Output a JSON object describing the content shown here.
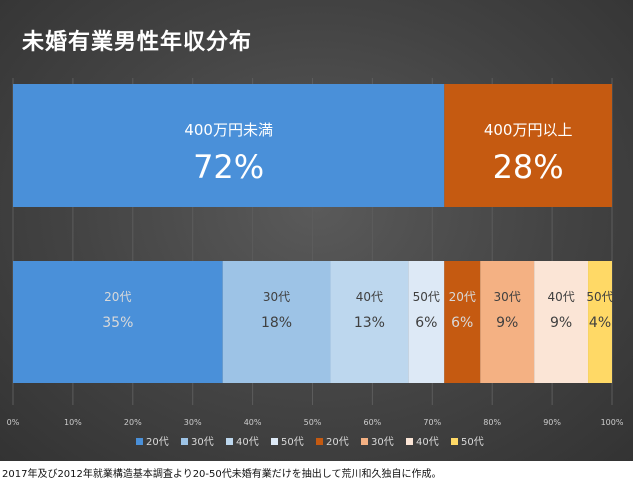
{
  "title": "未婚有業男性年収分布",
  "source_note": "2017年及び2012年就業構造基本調査より20-50代未婚有業だけを抽出して荒川和久独自に作成。",
  "chart_data": [
    {
      "type": "bar",
      "orientation": "horizontal-stacked",
      "segments": [
        {
          "label": "400万円未満",
          "value": 72,
          "value_label": "72%",
          "color": "#4a90d9"
        },
        {
          "label": "400万円以上",
          "value": 28,
          "value_label": "28%",
          "color": "#c55a11"
        }
      ]
    },
    {
      "type": "bar",
      "orientation": "horizontal-stacked",
      "segments": [
        {
          "label": "20代",
          "value": 35,
          "value_label": "35%",
          "color": "#4a90d9"
        },
        {
          "label": "30代",
          "value": 18,
          "value_label": "18%",
          "color": "#9dc3e6"
        },
        {
          "label": "40代",
          "value": 13,
          "value_label": "13%",
          "color": "#bdd7ee"
        },
        {
          "label": "50代",
          "value": 6,
          "value_label": "6%",
          "color": "#dde9f6"
        },
        {
          "label": "20代",
          "value": 6,
          "value_label": "6%",
          "color": "#c55a11"
        },
        {
          "label": "30代",
          "value": 9,
          "value_label": "9%",
          "color": "#f4b183"
        },
        {
          "label": "40代",
          "value": 9,
          "value_label": "9%",
          "color": "#fbe5d6"
        },
        {
          "label": "50代",
          "value": 4,
          "value_label": "4%",
          "color": "#ffd966"
        }
      ],
      "x_ticks": [
        "0%",
        "10%",
        "20%",
        "30%",
        "40%",
        "50%",
        "60%",
        "70%",
        "80%",
        "90%",
        "100%"
      ],
      "xlim": [
        0,
        100
      ],
      "legend": {
        "placement": "bottom",
        "entries": [
          {
            "label": "20代",
            "color": "#4a90d9"
          },
          {
            "label": "30代",
            "color": "#9dc3e6"
          },
          {
            "label": "40代",
            "color": "#bdd7ee"
          },
          {
            "label": "50代",
            "color": "#dde9f6"
          },
          {
            "label": "20代",
            "color": "#c55a11"
          },
          {
            "label": "30代",
            "color": "#f4b183"
          },
          {
            "label": "40代",
            "color": "#fbe5d6"
          },
          {
            "label": "50代",
            "color": "#ffd966"
          }
        ]
      }
    }
  ]
}
